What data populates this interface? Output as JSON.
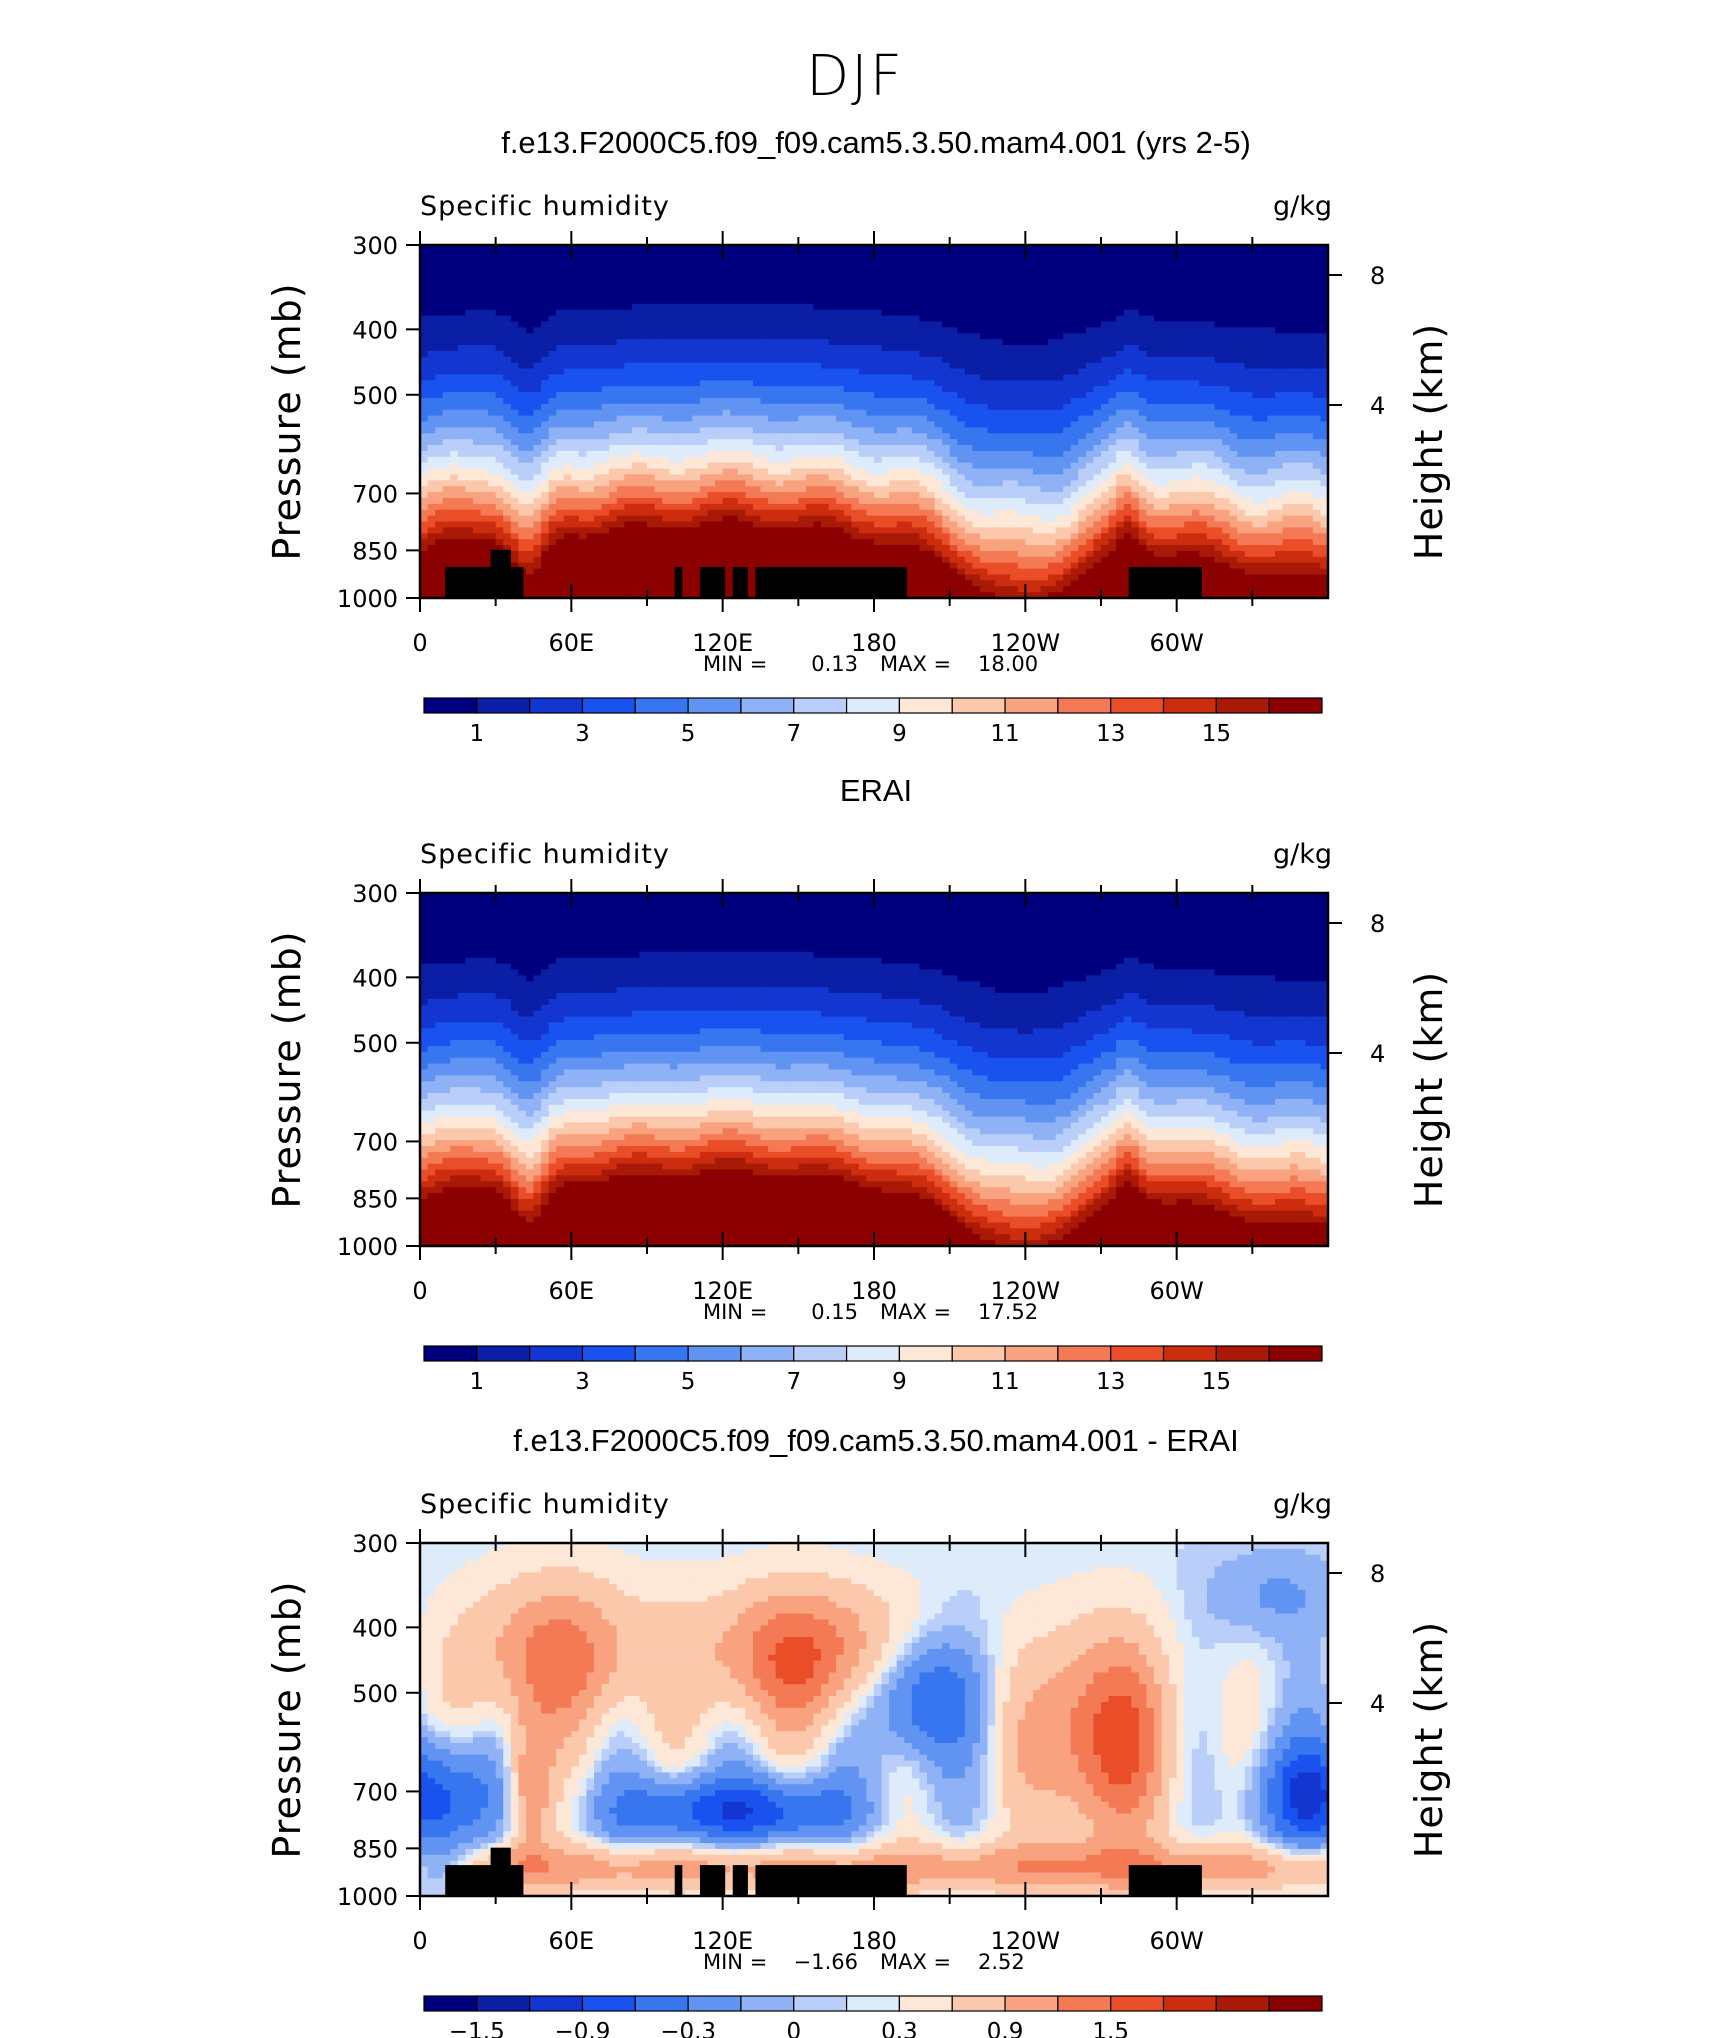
{
  "page": {
    "title": "DJF"
  },
  "colors": {
    "blue_to_red": [
      "#00007f",
      "#0a1fa5",
      "#1236cf",
      "#1a52ef",
      "#3876f0",
      "#6194f2",
      "#8fb1f5",
      "#b9cef8",
      "#deebfb",
      "#fde7d6",
      "#fbc8ac",
      "#f8a27f",
      "#f47a55",
      "#ea4e28",
      "#cc2d0e",
      "#a91a06",
      "#8b0000"
    ],
    "diff_palette": [
      "#00007f",
      "#0a1fa5",
      "#1236cf",
      "#1a52ef",
      "#3876f0",
      "#6194f2",
      "#8fb1f5",
      "#b9cef8",
      "#deebfb",
      "#fde7d6",
      "#fbc8ac",
      "#f8a27f",
      "#f47a55",
      "#ea4e28",
      "#cc2d0e",
      "#a91a06",
      "#8b0000"
    ],
    "land_mask": "#000000"
  },
  "chart_data": [
    {
      "type": "heatmap",
      "title": "f.e13.F2000C5.f09_f09.cam5.3.50.mam4.001 (yrs 2-5)",
      "left_string": "Specific humidity",
      "right_string": "g/kg",
      "ylabel": "Pressure (mb)",
      "y2label": "Height (km)",
      "xticklabels": [
        "0",
        "60E",
        "120E",
        "180",
        "120W",
        "60W"
      ],
      "xlim_deg_east": [
        0,
        360
      ],
      "yticklabels": [
        "300",
        "400",
        "500",
        "700",
        "850",
        "1000"
      ],
      "ylim_mb": [
        1000,
        300
      ],
      "y2ticklabels": [
        "8",
        "4"
      ],
      "min_label": "MIN =",
      "min_value": "0.13",
      "max_label": "MAX =",
      "max_value": "18.00",
      "colorbar_labels": [
        "1",
        "3",
        "5",
        "7",
        "9",
        "11",
        "13",
        "15"
      ],
      "levels": [
        1,
        2,
        3,
        4,
        5,
        6,
        7,
        8,
        9,
        10,
        11,
        12,
        13,
        14,
        15,
        16
      ],
      "mask": "topography"
    },
    {
      "type": "heatmap",
      "title": "ERAI",
      "left_string": "Specific humidity",
      "right_string": "g/kg",
      "ylabel": "Pressure (mb)",
      "y2label": "Height (km)",
      "xticklabels": [
        "0",
        "60E",
        "120E",
        "180",
        "120W",
        "60W"
      ],
      "xlim_deg_east": [
        0,
        360
      ],
      "yticklabels": [
        "300",
        "400",
        "500",
        "700",
        "850",
        "1000"
      ],
      "ylim_mb": [
        1000,
        300
      ],
      "y2ticklabels": [
        "8",
        "4"
      ],
      "min_label": "MIN =",
      "min_value": "0.15",
      "max_label": "MAX =",
      "max_value": "17.52",
      "colorbar_labels": [
        "1",
        "3",
        "5",
        "7",
        "9",
        "11",
        "13",
        "15"
      ],
      "levels": [
        1,
        2,
        3,
        4,
        5,
        6,
        7,
        8,
        9,
        10,
        11,
        12,
        13,
        14,
        15,
        16
      ],
      "mask": "none"
    },
    {
      "type": "heatmap",
      "title": "f.e13.F2000C5.f09_f09.cam5.3.50.mam4.001 - ERAI",
      "left_string": "Specific humidity",
      "right_string": "g/kg",
      "ylabel": "Pressure (mb)",
      "y2label": "Height (km)",
      "xticklabels": [
        "0",
        "60E",
        "120E",
        "180",
        "120W",
        "60W"
      ],
      "xlim_deg_east": [
        0,
        360
      ],
      "yticklabels": [
        "300",
        "400",
        "500",
        "700",
        "850",
        "1000"
      ],
      "ylim_mb": [
        1000,
        300
      ],
      "y2ticklabels": [
        "8",
        "4"
      ],
      "min_label": "MIN =",
      "min_value": "−1.66",
      "max_label": "MAX =",
      "max_value": "2.52",
      "colorbar_labels": [
        "−1.5",
        "−0.9",
        "−0.3",
        "0",
        "0.3",
        "0.9",
        "1.5"
      ],
      "levels": [
        -1.8,
        -1.5,
        -1.2,
        -0.9,
        -0.6,
        -0.3,
        -0.1,
        0,
        0.1,
        0.3,
        0.6,
        0.9,
        1.2,
        1.5,
        1.8,
        2.1
      ],
      "mask": "topography"
    }
  ]
}
